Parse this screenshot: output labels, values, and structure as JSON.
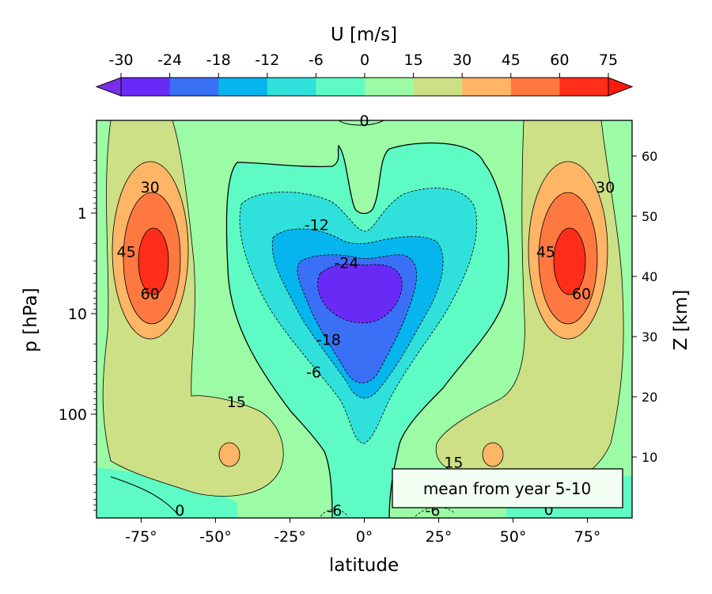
{
  "chart_data": {
    "type": "contourf",
    "colorbar": {
      "label": "U [m/s]",
      "levels": [
        -30,
        -24,
        -18,
        -12,
        -6,
        0,
        15,
        30,
        45,
        60,
        75
      ],
      "tick_labels": [
        "-30",
        "-24",
        "-18",
        "-12",
        "-6",
        "0",
        "15",
        "30",
        "45",
        "60",
        "75"
      ],
      "colors": [
        "#6a2af5",
        "#3a70f5",
        "#06b5ee",
        "#2fe0db",
        "#5ffbc4",
        "#9cfca6",
        "#cde086",
        "#ffb566",
        "#ff7840",
        "#ff2d1a"
      ],
      "under_color": "#7a2ee8",
      "over_color": "#ff1a0a",
      "extend": "both"
    },
    "xaxis": {
      "label": "latitude",
      "range": [
        -90,
        90
      ],
      "ticks": [
        -75,
        -50,
        -25,
        0,
        25,
        50,
        75
      ],
      "tick_labels": [
        "-75°",
        "-50°",
        "-25°",
        "0°",
        "25°",
        "50°",
        "75°"
      ]
    },
    "yaxis_left": {
      "label": "p  [hPa]",
      "scale": "log",
      "inverted": true,
      "range_hPa": [
        1000,
        0.1
      ],
      "ticks": [
        1,
        10,
        100
      ],
      "tick_labels": [
        "1",
        "10",
        "100"
      ]
    },
    "yaxis_right": {
      "label": "Z [km]",
      "ticks": [
        10,
        20,
        30,
        40,
        50,
        60
      ],
      "tick_labels": [
        "10",
        "20",
        "30",
        "40",
        "50",
        "60"
      ]
    },
    "contour_labels": [
      {
        "text": "30",
        "lat": -72,
        "p": 0.55
      },
      {
        "text": "45",
        "lat": -80,
        "p": 2.4
      },
      {
        "text": "60",
        "lat": -72,
        "p": 6.3
      },
      {
        "text": "30",
        "lat": 81,
        "p": 0.55
      },
      {
        "text": "45",
        "lat": 61,
        "p": 2.4
      },
      {
        "text": "60",
        "lat": 73,
        "p": 6.3
      },
      {
        "text": "-12",
        "lat": -16,
        "p": 1.3
      },
      {
        "text": "-24",
        "lat": -6,
        "p": 3.1
      },
      {
        "text": "-18",
        "lat": -12,
        "p": 18
      },
      {
        "text": "-6",
        "lat": -17,
        "p": 38
      },
      {
        "text": "15",
        "lat": -43,
        "p": 75
      },
      {
        "text": "15",
        "lat": 30,
        "p": 300
      },
      {
        "text": "0",
        "lat": 0,
        "p": 0.12
      },
      {
        "text": "0",
        "lat": -62,
        "p": 900
      },
      {
        "text": "-6",
        "lat": -10,
        "p": 900
      },
      {
        "text": "-6",
        "lat": 23,
        "p": 900
      },
      {
        "text": "0",
        "lat": 62,
        "p": 880
      }
    ],
    "annotation": "mean from year 5-10"
  }
}
